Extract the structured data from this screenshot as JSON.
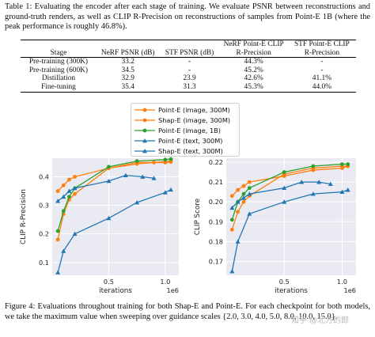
{
  "table_caption": {
    "label": "Table 1:",
    "text": "Evaluating the encoder after each stage of training. We evaluate PSNR between reconstructions and ground-truth renders, as well as CLIP R-Precision on reconstructions of samples from Point-E 1B (where the peak performance is roughly 46.8%)."
  },
  "table": {
    "headers": [
      "Stage",
      "NeRF PSNR (dB)",
      "STF PSNR (dB)",
      "NeRF Point-E CLIP R-Precision",
      "STF Point-E CLIP R-Precision"
    ],
    "rows": [
      [
        "Pre-training (300K)",
        "33.2",
        "-",
        "44.3%",
        "-"
      ],
      [
        "Pre-training (600K)",
        "34.5",
        "-",
        "45.2%",
        "-"
      ],
      [
        "Distillation",
        "32.9",
        "23.9",
        "42.6%",
        "41.1%"
      ],
      [
        "Fine-tuning",
        "35.4",
        "31.3",
        "45.3%",
        "44.0%"
      ]
    ]
  },
  "legend": [
    {
      "label": "Point-E (image, 300M)",
      "color": "#ff7f0e",
      "marker": "circle"
    },
    {
      "label": "Shap-E (image, 300M)",
      "color": "#ff7f0e",
      "marker": "circle"
    },
    {
      "label": "Point-E (image, 1B)",
      "color": "#2ca02c",
      "marker": "circle"
    },
    {
      "label": "Point-E (text, 300M)",
      "color": "#1f77b4",
      "marker": "triangle"
    },
    {
      "label": "Shap-E (text, 300M)",
      "color": "#1f77b4",
      "marker": "triangle"
    }
  ],
  "chart_data": [
    {
      "type": "line",
      "xlabel": "iterations",
      "ylabel": "CLIP R-Precision",
      "x_offset_label": "1e6",
      "xlim": [
        0,
        1.12
      ],
      "ylim": [
        0.055,
        0.465
      ],
      "xticks": [
        0.5,
        1.0
      ],
      "xtick_labels": [
        "0.5",
        "1.0"
      ],
      "yticks": [
        0.1,
        0.2,
        0.3,
        0.4
      ],
      "ytick_labels": [
        "0.1",
        "0.2",
        "0.3",
        "0.4"
      ],
      "grid": true,
      "series": [
        {
          "name": "Point-E (image, 300M)",
          "color": "#ff7f0e",
          "marker": "circle",
          "x": [
            0.05,
            0.1,
            0.15,
            0.2,
            0.5,
            0.75,
            0.9,
            1.05
          ],
          "y": [
            0.35,
            0.37,
            0.39,
            0.4,
            0.43,
            0.445,
            0.45,
            0.455
          ]
        },
        {
          "name": "Shap-E (image, 300M)",
          "color": "#ff7f0e",
          "marker": "circle",
          "x": [
            0.05,
            0.1,
            0.15,
            0.2,
            0.5,
            0.75,
            1.0,
            1.05
          ],
          "y": [
            0.18,
            0.27,
            0.32,
            0.34,
            0.43,
            0.45,
            0.45,
            0.452
          ]
        },
        {
          "name": "Point-E (image, 1B)",
          "color": "#2ca02c",
          "marker": "circle",
          "x": [
            0.05,
            0.1,
            0.15,
            0.2,
            0.5,
            0.75,
            1.0,
            1.05
          ],
          "y": [
            0.21,
            0.28,
            0.33,
            0.36,
            0.435,
            0.455,
            0.46,
            0.462
          ]
        },
        {
          "name": "Point-E (text, 300M)",
          "color": "#1f77b4",
          "marker": "triangle",
          "x": [
            0.05,
            0.1,
            0.15,
            0.2,
            0.5,
            0.65,
            0.8,
            0.9
          ],
          "y": [
            0.315,
            0.33,
            0.35,
            0.36,
            0.385,
            0.405,
            0.4,
            0.395
          ]
        },
        {
          "name": "Shap-E (text, 300M)",
          "color": "#1f77b4",
          "marker": "triangle",
          "x": [
            0.05,
            0.1,
            0.2,
            0.5,
            0.75,
            1.0,
            1.05
          ],
          "y": [
            0.065,
            0.14,
            0.2,
            0.255,
            0.31,
            0.345,
            0.355
          ]
        }
      ]
    },
    {
      "type": "line",
      "xlabel": "iterations",
      "ylabel": "CLIP Score",
      "x_offset_label": "1e6",
      "xlim": [
        0,
        1.12
      ],
      "ylim": [
        0.163,
        0.222
      ],
      "xticks": [
        0.5,
        1.0
      ],
      "xtick_labels": [
        "0.5",
        "1.0"
      ],
      "yticks": [
        0.17,
        0.18,
        0.19,
        0.2,
        0.21,
        0.22
      ],
      "ytick_labels": [
        "0.17",
        "0.18",
        "0.19",
        "0.20",
        "0.21",
        "0.22"
      ],
      "grid": true,
      "series": [
        {
          "name": "Point-E (image, 300M)",
          "color": "#ff7f0e",
          "marker": "circle",
          "x": [
            0.05,
            0.1,
            0.15,
            0.2,
            0.5,
            0.75,
            1.0,
            1.05
          ],
          "y": [
            0.203,
            0.206,
            0.208,
            0.21,
            0.213,
            0.216,
            0.217,
            0.218
          ]
        },
        {
          "name": "Shap-E (image, 300M)",
          "color": "#ff7f0e",
          "marker": "circle",
          "x": [
            0.05,
            0.1,
            0.15,
            0.2,
            0.5,
            0.75,
            1.0,
            1.05
          ],
          "y": [
            0.186,
            0.195,
            0.2,
            0.203,
            0.214,
            0.217,
            0.218,
            0.218
          ]
        },
        {
          "name": "Point-E (image, 1B)",
          "color": "#2ca02c",
          "marker": "circle",
          "x": [
            0.05,
            0.1,
            0.15,
            0.2,
            0.5,
            0.75,
            1.0,
            1.05
          ],
          "y": [
            0.191,
            0.2,
            0.204,
            0.207,
            0.215,
            0.218,
            0.219,
            0.219
          ]
        },
        {
          "name": "Point-E (text, 300M)",
          "color": "#1f77b4",
          "marker": "triangle",
          "x": [
            0.05,
            0.1,
            0.15,
            0.2,
            0.5,
            0.65,
            0.8,
            0.9
          ],
          "y": [
            0.197,
            0.2,
            0.202,
            0.204,
            0.207,
            0.21,
            0.21,
            0.209
          ]
        },
        {
          "name": "Shap-E (text, 300M)",
          "color": "#1f77b4",
          "marker": "triangle",
          "x": [
            0.05,
            0.1,
            0.2,
            0.5,
            0.75,
            1.0,
            1.05
          ],
          "y": [
            0.165,
            0.18,
            0.194,
            0.2,
            0.204,
            0.205,
            0.206
          ]
        }
      ]
    }
  ],
  "figure_caption": {
    "label": "Figure 4:",
    "text": "Evaluations throughout training for both Shap-E and Point-E. For each checkpoint for both models, we take the maximum value when sweeping over guidance scales {2.0, 3.0, 4.0, 5.0, 8.0, 10.0, 15.0}."
  },
  "watermark": "知乎 @北方的郎"
}
